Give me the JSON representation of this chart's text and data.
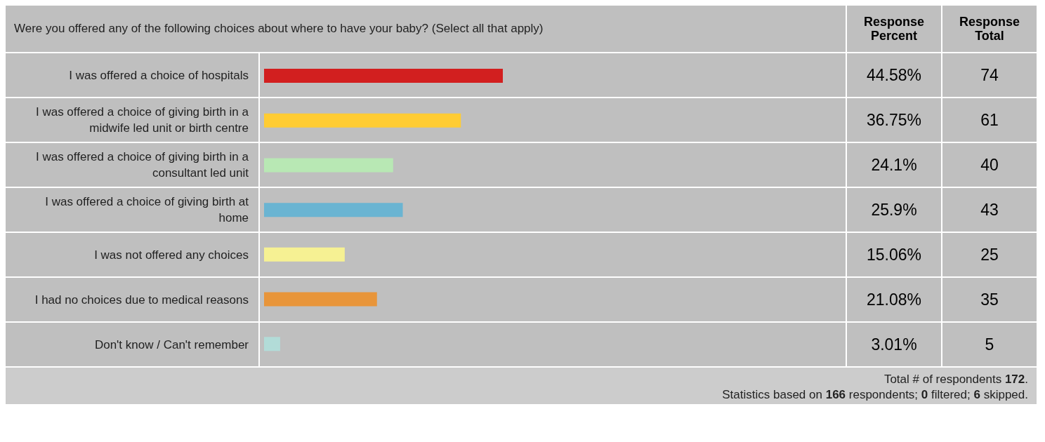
{
  "chart_data": {
    "type": "bar",
    "orientation": "horizontal",
    "title": "Were you offered any of the following choices about where to have your baby? (Select all that apply)",
    "categories": [
      "I was offered a choice of hospitals",
      "I was offered a choice of giving birth in a midwife led unit or birth centre",
      "I was offered a choice of giving birth in a consultant led unit",
      "I was offered a choice of giving birth at home",
      "I was not offered any choices",
      "I had no choices due to medical reasons",
      "Don't know / Can't remember"
    ],
    "values": [
      44.58,
      36.75,
      24.1,
      25.9,
      15.06,
      21.08,
      3.01
    ],
    "colors": [
      "#d21f1f",
      "#ffcc33",
      "#b8e8b4",
      "#6ab4d2",
      "#f6f193",
      "#e8953a",
      "#b2dcd8"
    ],
    "value_labels": [
      "44.58%",
      "36.75%",
      "24.1%",
      "25.9%",
      "15.06%",
      "21.08%",
      "3.01%"
    ],
    "annotations": [
      "Response Percent",
      "Response Total",
      "74",
      "61",
      "40",
      "43",
      "25",
      "35",
      "5",
      "Total # of respondents 172.",
      "Statistics based on 166 respondents; 0 filtered; 6 skipped."
    ]
  }
}
